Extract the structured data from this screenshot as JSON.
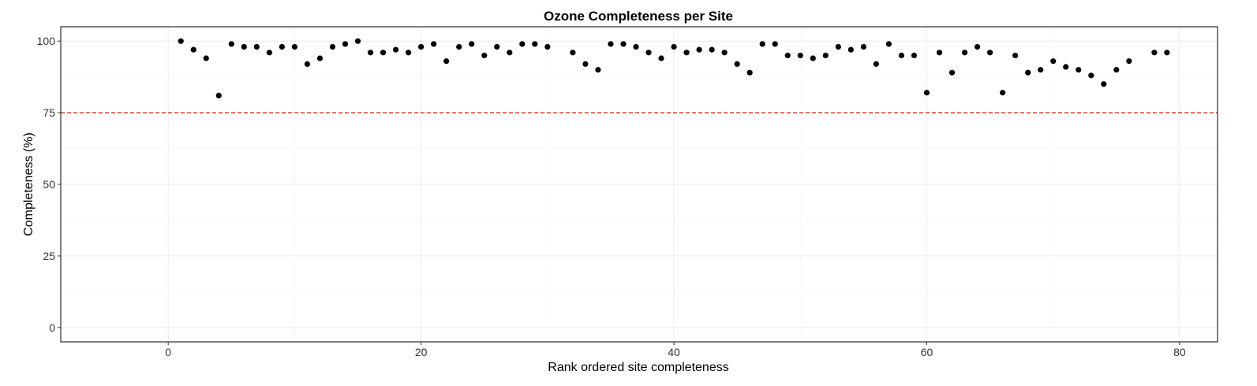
{
  "chart_data": {
    "type": "scatter",
    "title": "Ozone Completeness per Site",
    "xlabel": "Rank ordered site completeness",
    "ylabel": "Completeness (%)",
    "xlim": [
      -8.5,
      83
    ],
    "ylim": [
      -5,
      105
    ],
    "x_ticks": [
      0,
      20,
      40,
      60,
      80
    ],
    "y_ticks": [
      0,
      25,
      50,
      75,
      100
    ],
    "grid": true,
    "reference_line": {
      "y": 75,
      "style": "dashed",
      "color": "#d7301f"
    },
    "x": [
      1,
      2,
      3,
      4,
      5,
      6,
      7,
      8,
      9,
      10,
      11,
      12,
      13,
      14,
      15,
      16,
      17,
      18,
      19,
      20,
      21,
      22,
      23,
      24,
      25,
      26,
      27,
      28,
      29,
      30,
      32,
      33,
      34,
      35,
      36,
      37,
      38,
      39,
      40,
      41,
      42,
      43,
      44,
      45,
      46,
      47,
      48,
      49,
      50,
      51,
      52,
      53,
      54,
      55,
      56,
      57,
      58,
      59,
      60,
      61,
      62,
      63,
      64,
      65,
      66,
      67,
      68,
      69,
      70,
      71,
      72,
      73,
      74,
      75,
      76,
      78,
      79
    ],
    "y": [
      100,
      97,
      94,
      81,
      99,
      98,
      98,
      96,
      98,
      98,
      92,
      94,
      98,
      99,
      100,
      96,
      96,
      97,
      96,
      98,
      99,
      93,
      98,
      99,
      95,
      98,
      96,
      99,
      99,
      98,
      96,
      92,
      90,
      99,
      99,
      98,
      96,
      94,
      98,
      96,
      97,
      97,
      96,
      92,
      89,
      99,
      99,
      95,
      95,
      94,
      95,
      98,
      97,
      98,
      92,
      99,
      95,
      95,
      82,
      96,
      89,
      96,
      98,
      96,
      82,
      95,
      89,
      90,
      93,
      91,
      90,
      88,
      85,
      90,
      93,
      96,
      96
    ]
  }
}
